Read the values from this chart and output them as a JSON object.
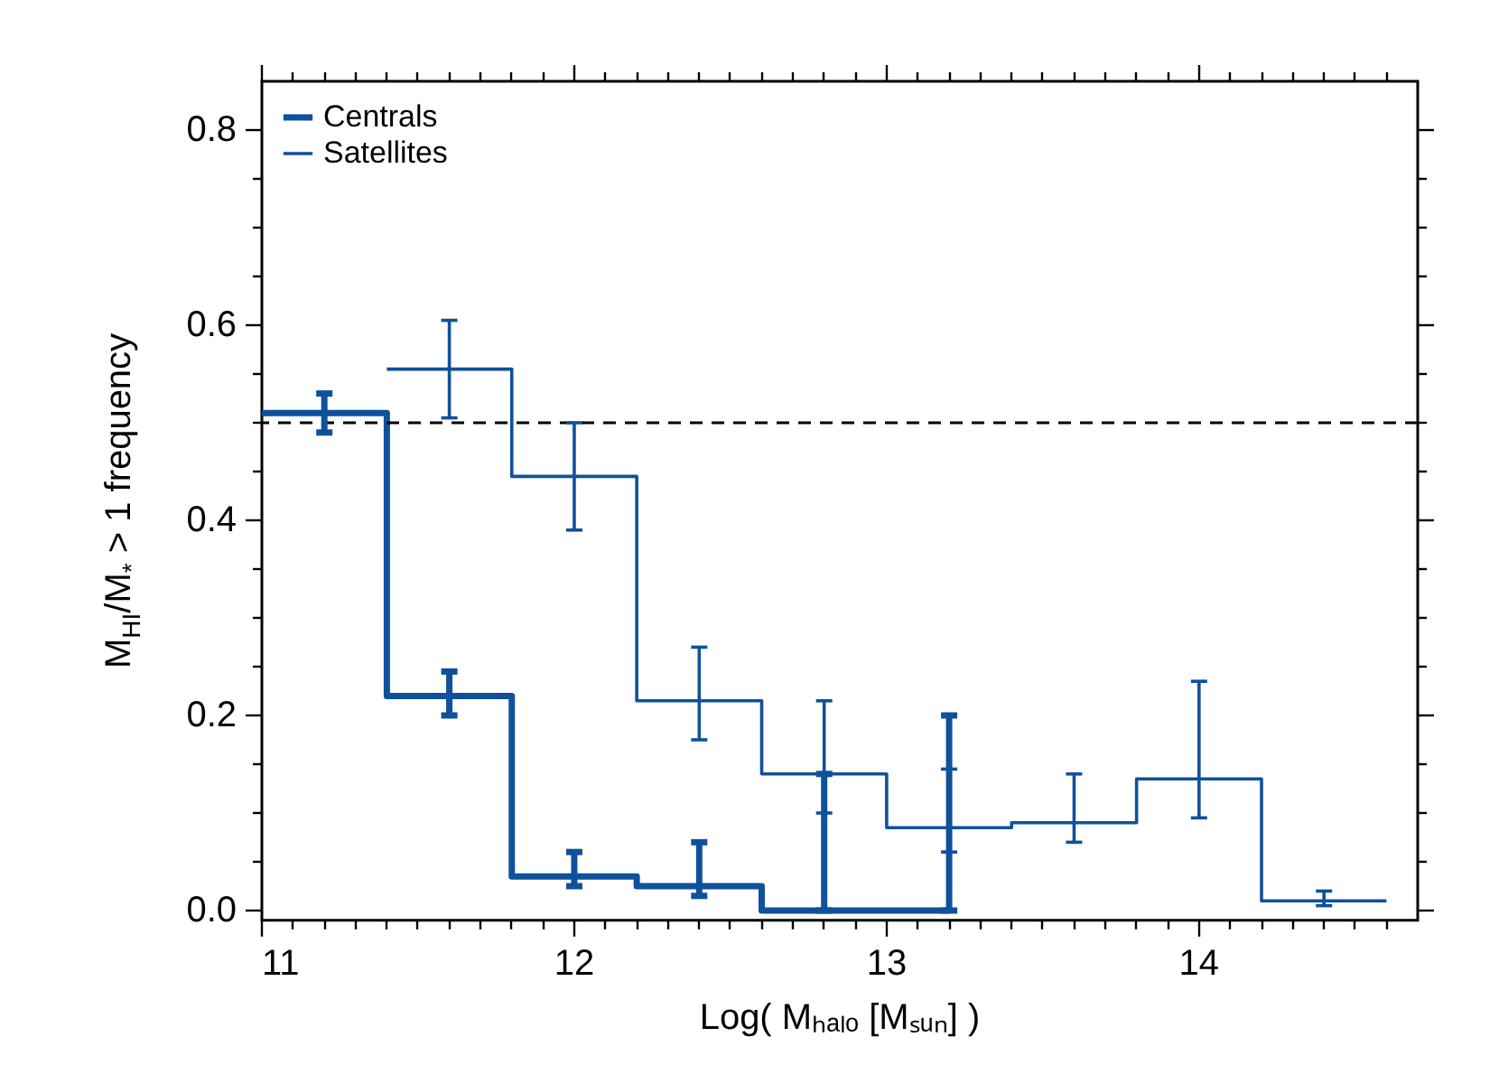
{
  "chart_data": {
    "type": "step",
    "xlabel": "Log( Mₕₐₗₒ [Mₛᵤₙ] )",
    "ylabel": "M$_{HI}$/M$_{*}$ > 1 frequency",
    "xlim": [
      11,
      14.7
    ],
    "xticks": [
      11,
      {
        "value": 11.1,
        "label": null
      },
      {
        "value": 11.2,
        "label": null
      },
      {
        "value": 11.3,
        "label": null
      },
      {
        "value": 11.4,
        "label": null
      },
      {
        "value": 11.5,
        "label": null
      },
      {
        "value": 11.6,
        "label": null
      },
      {
        "value": 11.7,
        "label": null
      },
      {
        "value": 11.8,
        "label": null
      },
      {
        "value": 11.9,
        "label": null
      },
      12,
      {
        "value": 12.1,
        "label": null
      },
      {
        "value": 12.2,
        "label": null
      },
      {
        "value": 12.3,
        "label": null
      },
      {
        "value": 12.4,
        "label": null
      },
      {
        "value": 12.5,
        "label": null
      },
      {
        "value": 12.6,
        "label": null
      },
      {
        "value": 12.7,
        "label": null
      },
      {
        "value": 12.8,
        "label": null
      },
      {
        "value": 12.9,
        "label": null
      },
      13,
      {
        "value": 13.1,
        "label": null
      },
      {
        "value": 13.2,
        "label": null
      },
      {
        "value": 13.3,
        "label": null
      },
      {
        "value": 13.4,
        "label": null
      },
      {
        "value": 13.5,
        "label": null
      },
      {
        "value": 13.6,
        "label": null
      },
      {
        "value": 13.7,
        "label": null
      },
      {
        "value": 13.8,
        "label": null
      },
      {
        "value": 13.9,
        "label": null
      },
      14,
      {
        "value": 14.1,
        "label": null
      },
      {
        "value": 14.2,
        "label": null
      },
      {
        "value": 14.3,
        "label": null
      },
      {
        "value": 14.4,
        "label": null
      },
      {
        "value": 14.5,
        "label": null
      },
      {
        "value": 14.6,
        "label": null
      }
    ],
    "ylim": [
      -0.01,
      0.85
    ],
    "yticks": [
      {
        "value": 0,
        "label": "0.0"
      },
      {
        "value": 0.05,
        "label": null
      },
      {
        "value": 0.1,
        "label": null
      },
      {
        "value": 0.15,
        "label": null
      },
      0.2,
      {
        "value": 0.25,
        "label": null
      },
      {
        "value": 0.3,
        "label": null
      },
      {
        "value": 0.35,
        "label": null
      },
      0.4,
      {
        "value": 0.45,
        "label": null
      },
      {
        "value": 0.5,
        "label": null
      },
      {
        "value": 0.55,
        "label": null
      },
      0.6,
      {
        "value": 0.65,
        "label": null
      },
      {
        "value": 0.7,
        "label": null
      },
      {
        "value": 0.75,
        "label": null
      },
      0.8
    ],
    "series": [
      {
        "name": "Centrals",
        "color": "#0f519b",
        "x": [
          11.0,
          11.2,
          11.6,
          12.0,
          12.4,
          12.8,
          13.2
        ],
        "values": [
          0.51,
          0.51,
          0.22,
          0.035,
          0.025,
          0,
          0
        ],
        "errors": [
          null,
          [
            0.49,
            0.53
          ],
          [
            0.2,
            0.245
          ],
          [
            0.025,
            0.06
          ],
          [
            0.015,
            0.07
          ],
          [
            0,
            0.14
          ],
          [
            0,
            0.2
          ]
        ]
      },
      {
        "name": "Satellites",
        "color": "#0f519b",
        "x": [
          11.4,
          11.6,
          12.0,
          12.4,
          12.8,
          13.2,
          13.6,
          14.0,
          14.4,
          14.6
        ],
        "values": [
          0.555,
          0.555,
          0.445,
          0.215,
          0.14,
          0.085,
          0.09,
          0.135,
          0.01,
          0.01
        ],
        "errors": [
          null,
          [
            0.505,
            0.605
          ],
          [
            0.39,
            0.5
          ],
          [
            0.175,
            0.27
          ],
          [
            0.1,
            0.215
          ],
          [
            0.06,
            0.145
          ],
          [
            0.07,
            0.14
          ],
          [
            0.095,
            0.235
          ],
          [
            0.005,
            0.02
          ],
          null
        ]
      }
    ],
    "ref_lines": [
      {
        "axis": "y",
        "value": 0.5,
        "color": "#000000",
        "line_style": "dashed"
      }
    ],
    "legend": "top left"
  }
}
